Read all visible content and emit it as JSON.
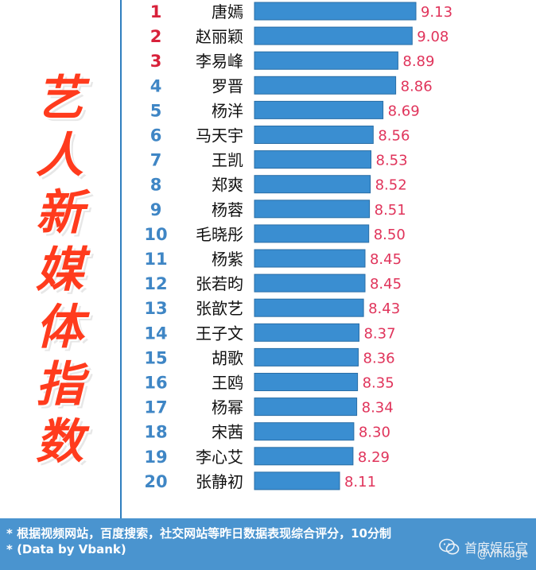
{
  "title_chars": [
    "艺",
    "人",
    "新",
    "媒",
    "体",
    "指",
    "数"
  ],
  "colors": {
    "bar": "#3a8ed1",
    "bar_edge": "#2a6ea6",
    "rank_top3": "#d8213a",
    "rank_other": "#3f86c5",
    "value": "#e0345b",
    "title": "#ff3b1d",
    "footer_bg": "#4a94cf"
  },
  "chart_data": {
    "type": "bar",
    "orientation": "horizontal",
    "ranks": [
      "1",
      "2",
      "3",
      "4",
      "5",
      "6",
      "7",
      "8",
      "9",
      "10",
      "11",
      "12",
      "13",
      "14",
      "15",
      "16",
      "17",
      "18",
      "19",
      "20"
    ],
    "categories": [
      "唐嫣",
      "赵丽颖",
      "李易峰",
      "罗晋",
      "杨洋",
      "马天宇",
      "王凯",
      "郑爽",
      "杨蓉",
      "毛晓彤",
      "杨紫",
      "张若昀",
      "张歆艺",
      "王子文",
      "胡歌",
      "王鸥",
      "杨幂",
      "宋茜",
      "李心艾",
      "张静初"
    ],
    "values": [
      9.13,
      9.08,
      8.89,
      8.86,
      8.69,
      8.56,
      8.53,
      8.52,
      8.51,
      8.5,
      8.45,
      8.45,
      8.43,
      8.37,
      8.36,
      8.35,
      8.34,
      8.3,
      8.29,
      8.11
    ],
    "value_labels": [
      "9.13",
      "9.08",
      "8.89",
      "8.86",
      "8.69",
      "8.56",
      "8.53",
      "8.52",
      "8.51",
      "8.50",
      "8.45",
      "8.45",
      "8.43",
      "8.37",
      "8.36",
      "8.35",
      "8.34",
      "8.30",
      "8.29",
      "8.11"
    ],
    "scale_note": "10-point scale"
  },
  "footer": {
    "note1": "* 根据视频网站，百度搜索，社交网站等昨日数据表现综合评分，10分制",
    "note2": "* (Data by Vbank)"
  },
  "watermark": {
    "text": "首席娱乐官",
    "handle": "@vinkage",
    "icon": "wechat-icon"
  }
}
